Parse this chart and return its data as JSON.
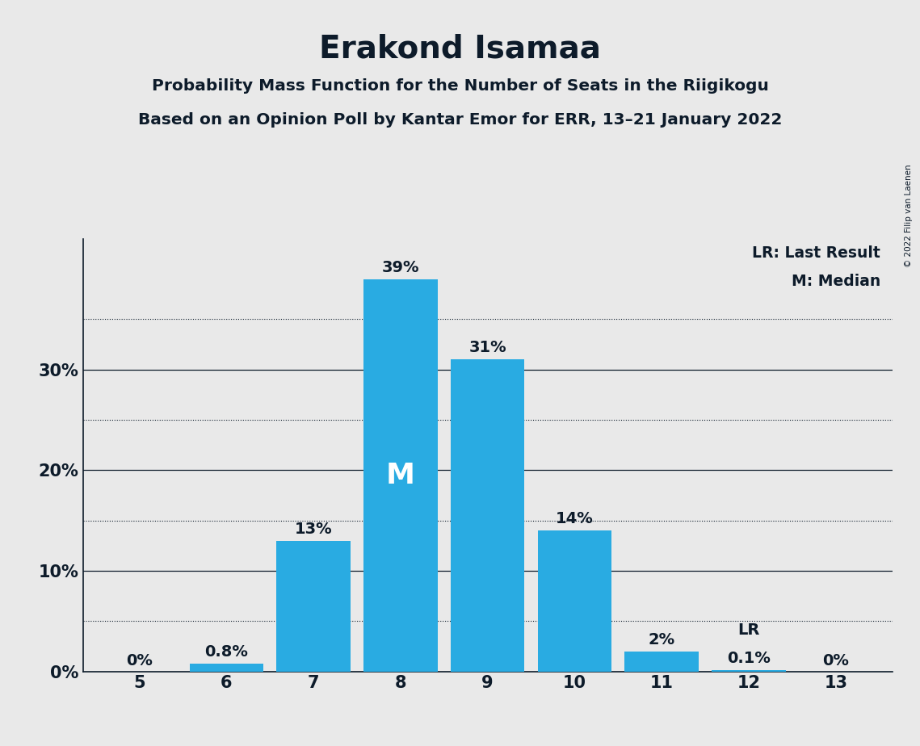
{
  "title": "Erakond Isamaa",
  "subtitle1": "Probability Mass Function for the Number of Seats in the Riigikogu",
  "subtitle2": "Based on an Opinion Poll by Kantar Emor for ERR, 13–21 January 2022",
  "copyright": "© 2022 Filip van Laenen",
  "categories": [
    5,
    6,
    7,
    8,
    9,
    10,
    11,
    12,
    13
  ],
  "values": [
    0.0,
    0.8,
    13.0,
    39.0,
    31.0,
    14.0,
    2.0,
    0.1,
    0.0
  ],
  "labels": [
    "0%",
    "0.8%",
    "13%",
    "39%",
    "31%",
    "14%",
    "2%",
    "0.1%",
    "0%"
  ],
  "bar_color": "#29abe2",
  "background_color": "#e9e9e9",
  "median_bar": 8,
  "lr_bar": 12,
  "ylim": [
    0,
    43
  ],
  "yticks": [
    0,
    10,
    20,
    30
  ],
  "ytick_labels": [
    "0%",
    "10%",
    "20%",
    "30%"
  ],
  "dotted_lines": [
    5,
    15,
    25,
    35
  ],
  "title_fontsize": 28,
  "subtitle_fontsize": 14.5,
  "label_fontsize": 14,
  "axis_fontsize": 15,
  "legend_fontsize": 13.5,
  "text_color": "#0d1b2a",
  "legend_lr": "LR: Last Result",
  "legend_m": "M: Median"
}
